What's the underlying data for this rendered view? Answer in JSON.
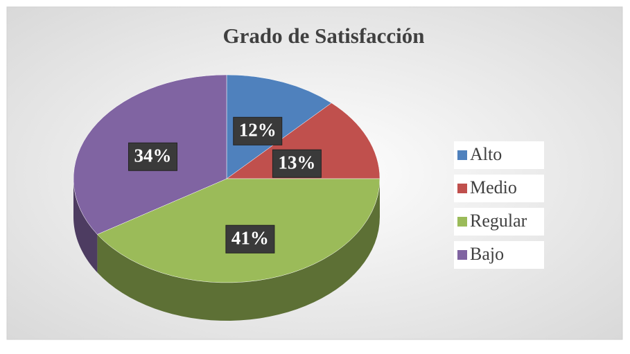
{
  "chart_data": {
    "type": "pie",
    "title": "Grado de Satisfacción",
    "categories": [
      "Alto",
      "Medio",
      "Regular",
      "Bajo"
    ],
    "values": [
      12,
      13,
      41,
      34
    ],
    "value_labels": [
      "12%",
      "13%",
      "41%",
      "34%"
    ],
    "colors": [
      "#4f81bd",
      "#c0504d",
      "#9bbb59",
      "#8064a2"
    ],
    "legend": "right"
  }
}
